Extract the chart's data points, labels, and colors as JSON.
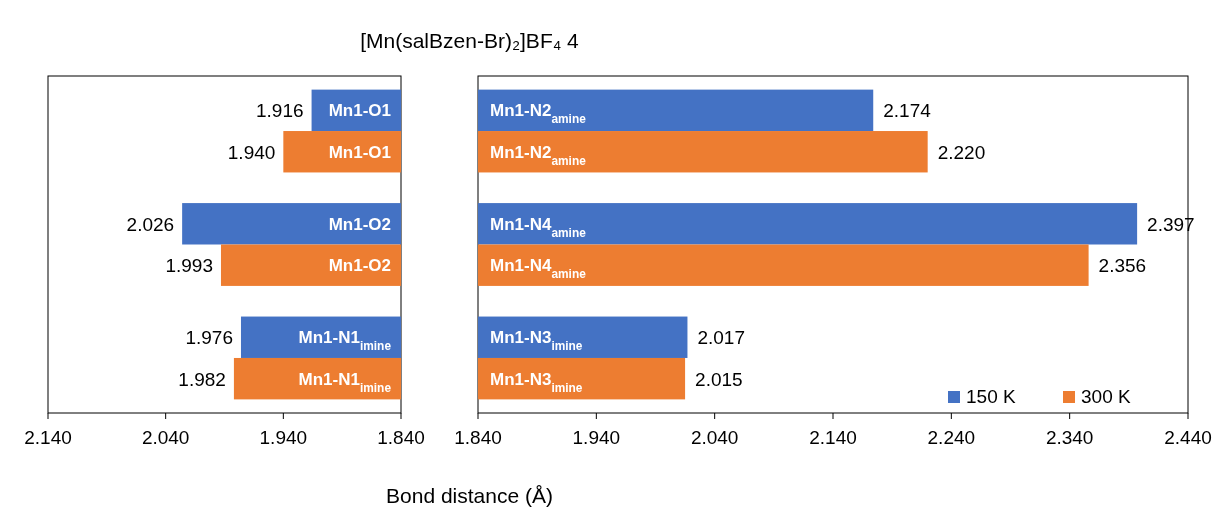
{
  "chart_data": [
    {
      "type": "bar",
      "orientation": "horizontal",
      "title": "[Mn(salBzen-Br)₂]BF₄ 4",
      "xlabel": "Bond distance (Å)",
      "categories": [
        "Mn1-O1",
        "Mn1-O2",
        "Mn1-N1$_{imine}$"
      ],
      "series": [
        {
          "color": "#4472c4",
          "values": [
            1.916,
            2.026,
            1.976
          ],
          "value_labels": [
            "1.916",
            "2.026",
            "1.976"
          ]
        },
        {
          "color": "#ed7d31",
          "values": [
            1.94,
            1.993,
            1.982
          ],
          "value_labels": [
            "1.940",
            "1.993",
            "1.982"
          ]
        }
      ],
      "xlim": [
        2.14,
        1.84
      ],
      "xticks": [
        {
          "value": 2.14,
          "label": "2.140"
        },
        {
          "value": 2.04,
          "label": "2.040"
        },
        {
          "value": 1.94,
          "label": "1.940"
        },
        {
          "value": 1.84,
          "label": "1.840"
        }
      ],
      "grid": false,
      "legend": false
    },
    {
      "type": "bar",
      "orientation": "horizontal",
      "categories": [
        "Mn1-N2$_{amine}$",
        "Mn1-N4$_{amine}$",
        "Mn1-N3$_{imine}$"
      ],
      "series": [
        {
          "name": "150 K",
          "color": "#4472c4",
          "values": [
            2.174,
            2.397,
            2.017
          ],
          "value_labels": [
            "2.174",
            "2.397",
            "2.017"
          ]
        },
        {
          "name": "300 K",
          "color": "#ed7d31",
          "values": [
            2.22,
            2.356,
            2.015
          ],
          "value_labels": [
            "2.220",
            "2.356",
            "2.015"
          ]
        }
      ],
      "xlim": [
        1.84,
        2.44
      ],
      "xticks": [
        {
          "value": 1.84,
          "label": "1.840"
        },
        {
          "value": 1.94,
          "label": "1.940"
        },
        {
          "value": 2.04,
          "label": "2.040"
        },
        {
          "value": 2.14,
          "label": "2.140"
        },
        {
          "value": 2.24,
          "label": "2.240"
        },
        {
          "value": 2.34,
          "label": "2.340"
        },
        {
          "value": 2.44,
          "label": "2.440"
        }
      ],
      "grid": false,
      "legend": "bottom right"
    }
  ]
}
